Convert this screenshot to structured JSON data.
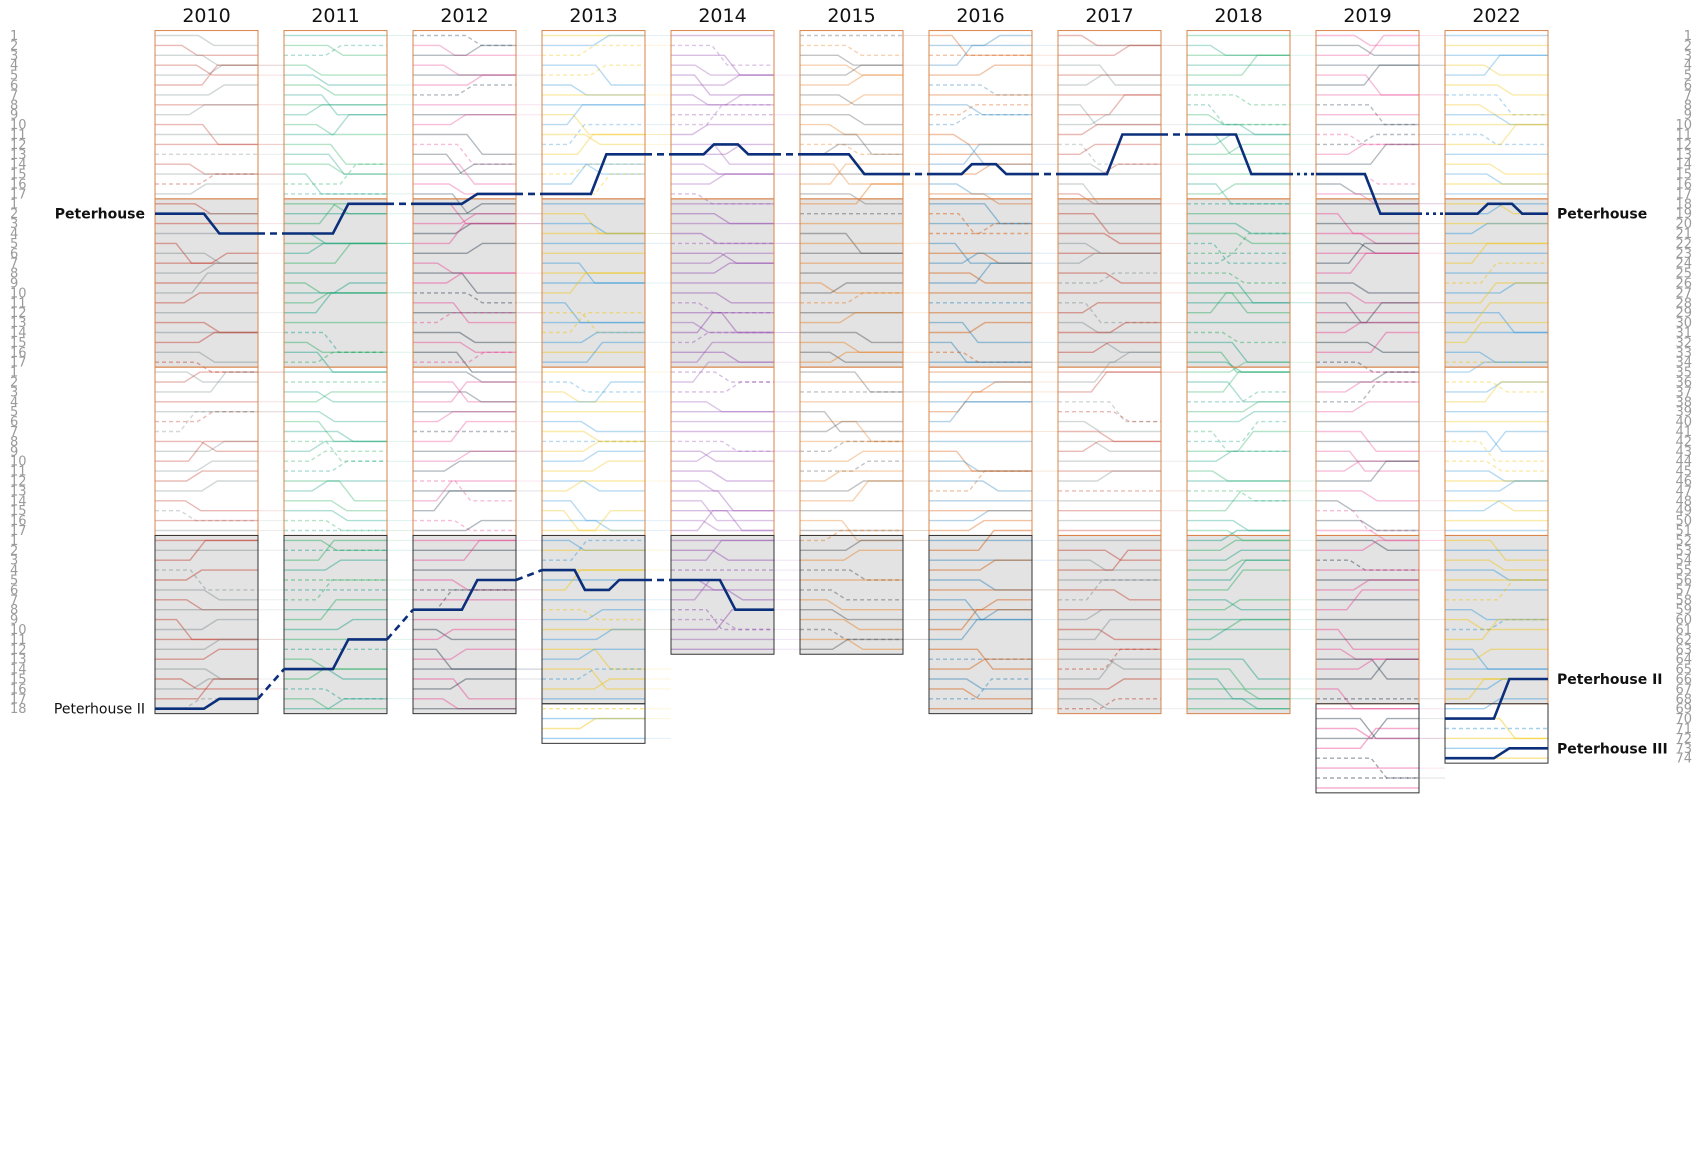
{
  "chart_data": {
    "type": "line",
    "title": "",
    "xlabel": "",
    "ylabel": "",
    "years": [
      "2010",
      "2011",
      "2012",
      "2013",
      "2014",
      "2015",
      "2016",
      "2017",
      "2018",
      "2019",
      "2022"
    ],
    "divisions_per_year": [
      [
        17,
        17,
        17,
        18
      ],
      [
        17,
        17,
        17,
        18
      ],
      [
        17,
        17,
        17,
        18
      ],
      [
        17,
        17,
        17,
        17,
        4
      ],
      [
        17,
        17,
        17,
        12
      ],
      [
        17,
        17,
        17,
        12
      ],
      [
        17,
        17,
        17,
        18
      ],
      [
        17,
        17,
        17,
        18
      ],
      [
        17,
        17,
        17,
        18
      ],
      [
        17,
        17,
        17,
        17,
        9
      ],
      [
        17,
        17,
        17,
        17,
        6
      ]
    ],
    "left_position_labels": [
      "1",
      "2",
      "3",
      "4",
      "5",
      "6",
      "7",
      "8",
      "9",
      "10",
      "11",
      "12",
      "13",
      "14",
      "15",
      "16",
      "17",
      "1",
      "2",
      "3",
      "4",
      "5",
      "6",
      "7",
      "8",
      "9",
      "10",
      "11",
      "12",
      "13",
      "14",
      "15",
      "16",
      "17",
      "1",
      "2",
      "3",
      "4",
      "5",
      "6",
      "7",
      "8",
      "9",
      "10",
      "11",
      "12",
      "13",
      "14",
      "15",
      "16",
      "17",
      "1",
      "2",
      "3",
      "4",
      "5",
      "6",
      "7",
      "8",
      "9",
      "10",
      "11",
      "12",
      "13",
      "14",
      "15",
      "16",
      "17",
      "18"
    ],
    "right_position_labels": [
      "1",
      "2",
      "3",
      "4",
      "5",
      "6",
      "7",
      "8",
      "9",
      "10",
      "11",
      "12",
      "13",
      "14",
      "15",
      "16",
      "17",
      "18",
      "19",
      "20",
      "21",
      "22",
      "23",
      "24",
      "25",
      "26",
      "27",
      "28",
      "29",
      "30",
      "31",
      "32",
      "33",
      "34",
      "35",
      "36",
      "37",
      "38",
      "39",
      "40",
      "41",
      "42",
      "43",
      "44",
      "45",
      "46",
      "47",
      "48",
      "49",
      "50",
      "51",
      "52",
      "53",
      "54",
      "55",
      "56",
      "57",
      "58",
      "59",
      "60",
      "61",
      "62",
      "63",
      "64",
      "65",
      "66",
      "67",
      "68",
      "69",
      "70",
      "71",
      "72",
      "73",
      "74"
    ],
    "highlighted_series": [
      {
        "name": "Peterhouse",
        "color": "#0b2f7a",
        "positions_by_year": [
          [
            19,
            21
          ],
          [
            21,
            18
          ],
          [
            18,
            17
          ],
          [
            17,
            13
          ],
          [
            13,
            12,
            13
          ],
          [
            13,
            15
          ],
          [
            15,
            14,
            15
          ],
          [
            15,
            11
          ],
          [
            11,
            15
          ],
          [
            15,
            19
          ],
          [
            19,
            18,
            19
          ]
        ],
        "left_label_position": 19,
        "right_label_position": 19,
        "label_weight": "bold"
      },
      {
        "name": "Peterhouse II",
        "color": "#0b2f7a",
        "positions_by_year": [
          [
            69,
            68
          ],
          [
            65,
            62
          ],
          [
            59,
            56
          ],
          [
            55,
            57,
            56
          ],
          [
            56,
            59
          ],
          [],
          [],
          [],
          [],
          [],
          [
            70,
            66
          ]
        ],
        "left_label_position": 69,
        "right_label_position": 66,
        "label_weight_left": "normal",
        "label_weight_right": "bold"
      },
      {
        "name": "Peterhouse III",
        "color": "#0b2f7a",
        "positions_by_year": [
          [],
          [],
          [],
          [],
          [],
          [],
          [],
          [],
          [],
          [],
          [
            74,
            73
          ]
        ],
        "right_label_position": 73,
        "label_weight": "bold"
      }
    ],
    "background_series_count": 74,
    "colors": {
      "division_border_orange": "#d9844a",
      "division_border_dark": "#333333",
      "shaded_division_fill": "#e3e3e3",
      "highlight": "#0b2f7a",
      "label_grey": "#9a9a9a",
      "palette": [
        "#c0392b",
        "#e67e22",
        "#f1c40f",
        "#27ae60",
        "#2980b9",
        "#8e44ad",
        "#e84393",
        "#7f8c8d",
        "#555555",
        "#3498db",
        "#16a085",
        "#d35400",
        "#9b59b6",
        "#2c3e50"
      ]
    },
    "grid": false,
    "legend": "none"
  }
}
